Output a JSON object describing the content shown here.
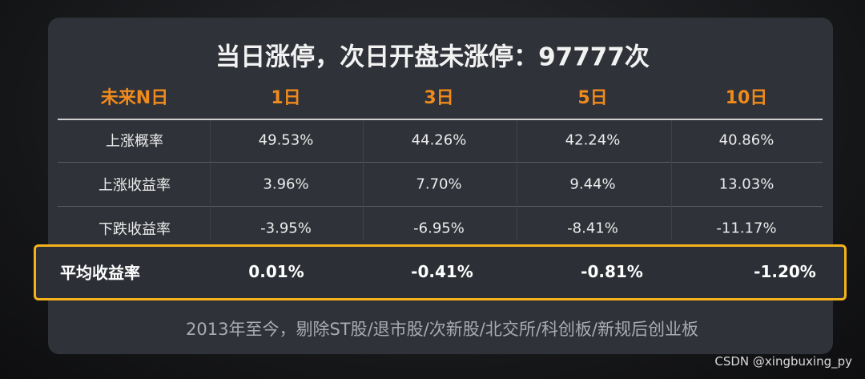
{
  "title": "当日涨停，次日开盘未涨停：97777次",
  "table": {
    "header": [
      "未来N日",
      "1日",
      "3日",
      "5日",
      "10日"
    ],
    "rows": [
      [
        "上涨概率",
        "49.53%",
        "44.26%",
        "42.24%",
        "40.86%"
      ],
      [
        "上涨收益率",
        "3.96%",
        "7.70%",
        "9.44%",
        "13.03%"
      ],
      [
        "下跌收益率",
        "-3.95%",
        "-6.95%",
        "-8.41%",
        "-11.17%"
      ],
      [
        "平均收益率",
        "0.01%",
        "-0.41%",
        "-0.81%",
        "-1.20%"
      ]
    ]
  },
  "footnote": "2013年至今，剔除ST股/退市股/次新股/北交所/科创板/新规后创业板",
  "watermark": "CSDN @xingbuxing_py"
}
